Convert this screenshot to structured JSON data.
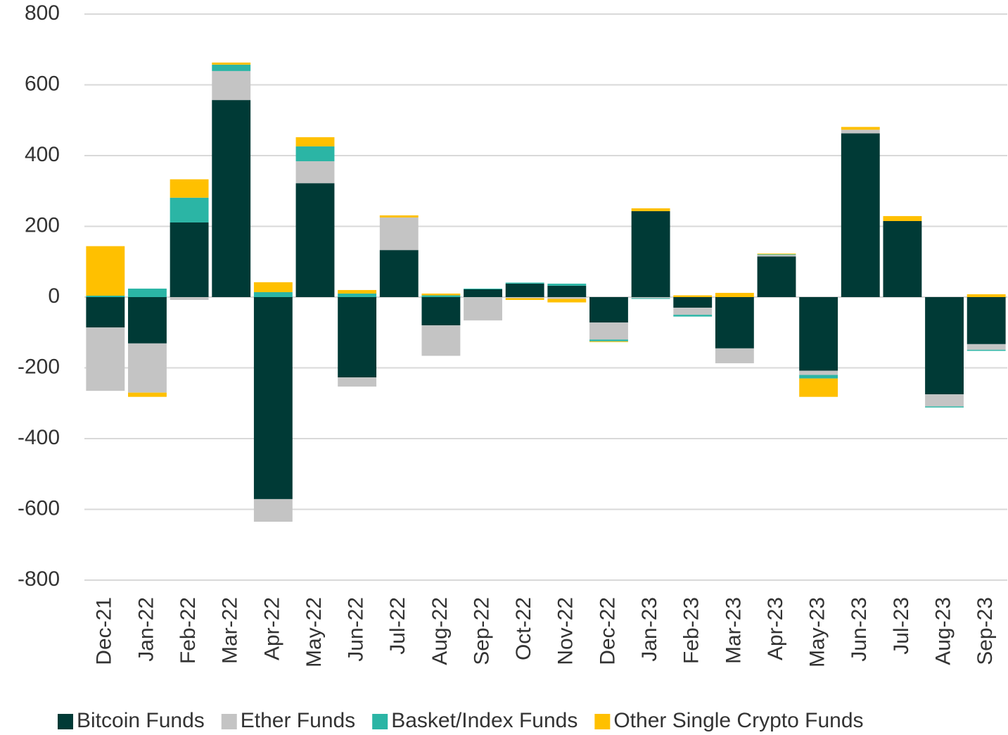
{
  "chart_data": {
    "type": "bar",
    "stacked": true,
    "categories": [
      "Dec-21",
      "Jan-22",
      "Feb-22",
      "Mar-22",
      "Apr-22",
      "May-22",
      "Jun-22",
      "Jul-22",
      "Aug-22",
      "Sep-22",
      "Oct-22",
      "Nov-22",
      "Dec-22",
      "Jan-23",
      "Feb-23",
      "Mar-23",
      "Apr-23",
      "May-23",
      "Jun-23",
      "Jul-23",
      "Aug-23",
      "Sep-23"
    ],
    "series": [
      {
        "name": "Bitcoin Funds",
        "color": "#003a36",
        "values": [
          -86,
          -131,
          211,
          557,
          -571,
          322,
          -227,
          133,
          -80,
          22,
          38,
          32,
          -72,
          243,
          -30,
          -145,
          115,
          -208,
          463,
          215,
          -275,
          -133
        ]
      },
      {
        "name": "Ether Funds",
        "color": "#c4c4c4",
        "values": [
          -179,
          -139,
          -8,
          82,
          -64,
          62,
          -26,
          92,
          -86,
          -66,
          -3,
          -5,
          -48,
          -3,
          -20,
          -42,
          4,
          -12,
          10,
          0,
          -34,
          -16
        ]
      },
      {
        "name": "Basket/Index Funds",
        "color": "#2bb5a5",
        "values": [
          4,
          24,
          70,
          18,
          14,
          42,
          10,
          0,
          5,
          2,
          3,
          6,
          -5,
          -2,
          -5,
          0,
          2,
          -10,
          0,
          0,
          -3,
          -3
        ]
      },
      {
        "name": "Other Single Crypto Funds",
        "color": "#ffc000",
        "values": [
          140,
          -12,
          52,
          6,
          28,
          26,
          10,
          6,
          5,
          0,
          -5,
          -10,
          -2,
          8,
          5,
          12,
          2,
          -52,
          8,
          14,
          0,
          8
        ]
      }
    ],
    "ylim": [
      -800,
      800
    ],
    "yticks": [
      -800,
      -600,
      -400,
      -200,
      0,
      200,
      400,
      600,
      800
    ],
    "grid": true,
    "legend": "bottom"
  }
}
